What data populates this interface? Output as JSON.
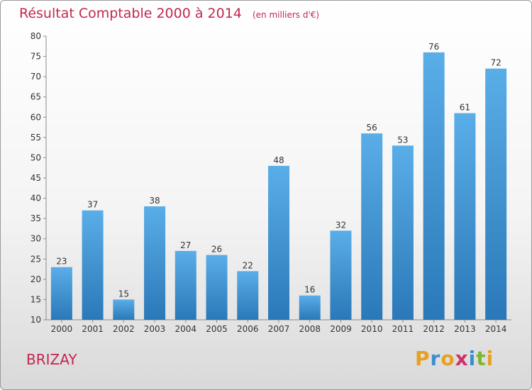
{
  "chart_data": {
    "type": "bar",
    "title": "Résultat Comptable 2000 à 2014",
    "unit_note": "(en milliers d'€)",
    "categories": [
      "2000",
      "2001",
      "2002",
      "2003",
      "2004",
      "2005",
      "2006",
      "2007",
      "2008",
      "2009",
      "2010",
      "2011",
      "2012",
      "2013",
      "2014"
    ],
    "values": [
      23,
      37,
      15,
      38,
      27,
      26,
      22,
      48,
      16,
      32,
      56,
      53,
      76,
      61,
      72
    ],
    "ylim": [
      10,
      80
    ],
    "yticks": [
      10,
      15,
      20,
      25,
      30,
      35,
      40,
      45,
      50,
      55,
      60,
      65,
      70,
      75,
      80
    ],
    "grid": false,
    "legend": "none",
    "bar_color_top": "#5aaee8",
    "bar_color_bottom": "#2a78b8"
  },
  "commune": "BRIZAY",
  "logo": {
    "letters": [
      "P",
      "r",
      "o",
      "x",
      "i",
      "t",
      "i"
    ],
    "colors": [
      "#e8a020",
      "#3a8fd0",
      "#e8a020",
      "#d0306a",
      "#3a8fd0",
      "#7ab830",
      "#e8a020"
    ]
  }
}
